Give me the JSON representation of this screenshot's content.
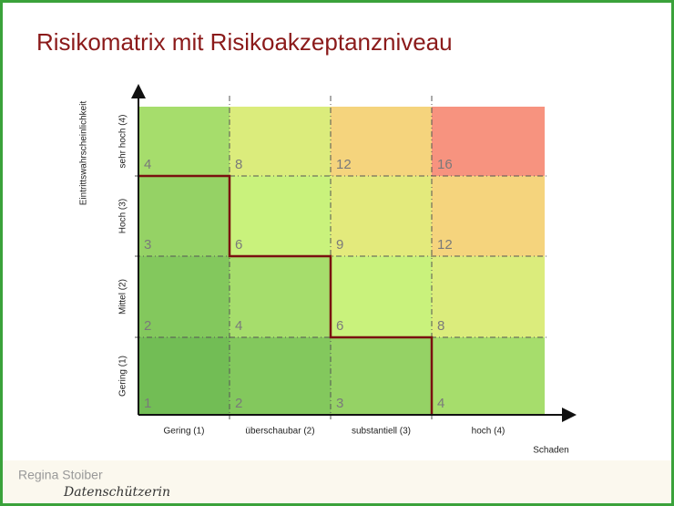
{
  "chart_data": {
    "type": "heatmap",
    "title": "Risikomatrix mit Risikoakzeptanzniveau",
    "x_label": "Schaden",
    "y_label": "Eintrittswahrscheinlichkeit",
    "x_categories": [
      "Gering (1)",
      "überschaubar (2)",
      "substantiell (3)",
      "hoch (4)"
    ],
    "y_categories": [
      "Gering (1)",
      "Mittel (2)",
      "Hoch (3)",
      "sehr hoch (4)"
    ],
    "values": [
      [
        1,
        2,
        3,
        4
      ],
      [
        2,
        4,
        6,
        8
      ],
      [
        3,
        6,
        9,
        12
      ],
      [
        4,
        8,
        12,
        16
      ]
    ],
    "colorscale": [
      "#72bd55",
      "#c9f27c",
      "#f5e47c",
      "#f7937f"
    ]
  },
  "footer": {
    "author": "Regina Stoiber",
    "tagline": "Datenschützerin"
  }
}
